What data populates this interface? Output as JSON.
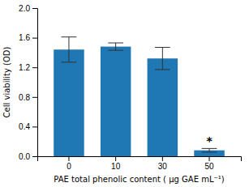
{
  "chart_data": {
    "type": "bar",
    "xlabel": "PAE total phenolic content ( μg GAE mL⁻¹)",
    "ylabel": "Cell viability (OD)",
    "categories": [
      "0",
      "10",
      "30",
      "50"
    ],
    "values": [
      1.44,
      1.48,
      1.32,
      0.08
    ],
    "errors": [
      0.17,
      0.05,
      0.15,
      0.025
    ],
    "ylim": [
      0.0,
      2.0
    ],
    "yticks": [
      {
        "value": 0.0,
        "label": "0.0"
      },
      0.4,
      0.8,
      1.2,
      1.6,
      {
        "value": 2.0,
        "label": "2.0"
      }
    ],
    "grid": false,
    "annotations": [
      {
        "text": "*",
        "category": "50"
      }
    ]
  }
}
